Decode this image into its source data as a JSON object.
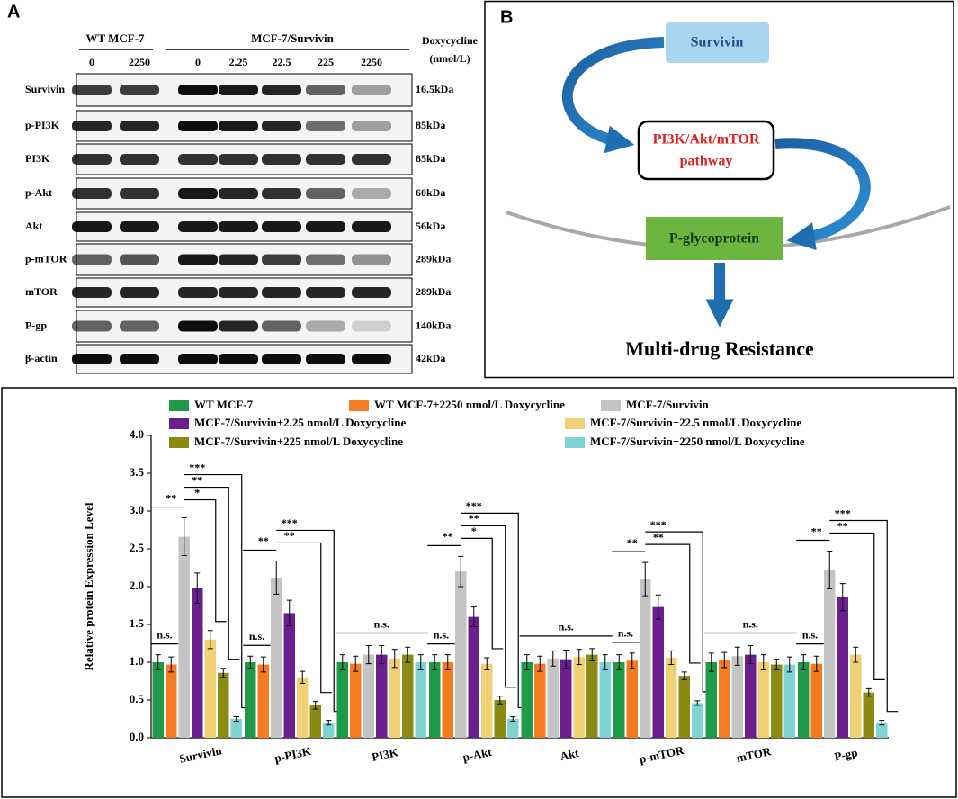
{
  "panel_a": {
    "label": "A",
    "groups": [
      "WT MCF-7",
      "MCF-7/Survivin"
    ],
    "lanes": [
      "0",
      "2250",
      "0",
      "2.25",
      "22.5",
      "225",
      "2250"
    ],
    "treatment": "Doxycycline",
    "unit": "(nmol/L)",
    "rows": [
      {
        "name": "Survivin",
        "size": "16.5kDa"
      },
      {
        "name": "p-PI3K",
        "size": "85kDa"
      },
      {
        "name": "PI3K",
        "size": "85kDa"
      },
      {
        "name": "p-Akt",
        "size": "60kDa"
      },
      {
        "name": "Akt",
        "size": "56kDa"
      },
      {
        "name": "p-mTOR",
        "size": "289kDa"
      },
      {
        "name": "mTOR",
        "size": "289kDa"
      },
      {
        "name": "P-gp",
        "size": "140kDa"
      },
      {
        "name": "β-actin",
        "size": "42kDa"
      }
    ]
  },
  "panel_b": {
    "label": "B",
    "survivin": "Survivin",
    "pathway": [
      "PI3K/Akt/mTOR",
      "pathway"
    ],
    "pgp": "P-glycoprotein",
    "outcome": "Multi-drug Resistance"
  },
  "chart_data": {
    "type": "bar",
    "y_label": "Relative protein Expression Level",
    "categories": [
      "Survivin",
      "p-PI3K",
      "PI3K",
      "p-Akt",
      "Akt",
      "p-mTOR",
      "mTOR",
      "P-gp"
    ],
    "ylim": [
      0,
      4
    ],
    "yticks": [
      {
        "value": 0,
        "label": "0.0"
      },
      0.5,
      {
        "value": 1,
        "label": "1.0"
      },
      1.5,
      {
        "value": 2,
        "label": "2.0"
      },
      2.5,
      {
        "value": 3,
        "label": "3.0"
      },
      3.5,
      {
        "value": 4,
        "label": "4.0"
      }
    ],
    "series": [
      {
        "name": "WT MCF-7",
        "color": "#1f9a48",
        "values": [
          1.0,
          1.0,
          1.0,
          1.0,
          1.0,
          1.0,
          1.0,
          1.0
        ],
        "errors": [
          0.1,
          0.08,
          0.1,
          0.1,
          0.1,
          0.1,
          0.12,
          0.1
        ]
      },
      {
        "name": "WT MCF-7+2250 nmol/L Doxycycline",
        "color": "#f47b20",
        "values": [
          0.97,
          0.97,
          0.98,
          1.0,
          0.98,
          1.02,
          1.03,
          0.98
        ],
        "errors": [
          0.1,
          0.1,
          0.1,
          0.1,
          0.1,
          0.1,
          0.1,
          0.1
        ]
      },
      {
        "name": "MCF-7/Survivin",
        "color": "#c4c4c4",
        "values": [
          2.66,
          2.12,
          1.1,
          2.2,
          1.05,
          2.1,
          1.08,
          2.22
        ],
        "errors": [
          0.25,
          0.22,
          0.12,
          0.2,
          0.1,
          0.22,
          0.12,
          0.25
        ]
      },
      {
        "name": "MCF-7/Survivin+2.25 nmol/L Doxycycline",
        "color": "#6b1f8f",
        "values": [
          1.98,
          1.65,
          1.1,
          1.6,
          1.04,
          1.73,
          1.1,
          1.86
        ],
        "errors": [
          0.2,
          0.17,
          0.12,
          0.13,
          0.12,
          0.16,
          0.12,
          0.18
        ]
      },
      {
        "name": "MCF-7/Survivin+22.5 nmol/L Doxycycline",
        "color": "#f0d074",
        "values": [
          1.3,
          0.8,
          1.05,
          0.98,
          1.07,
          1.06,
          1.0,
          1.1
        ],
        "errors": [
          0.12,
          0.08,
          0.12,
          0.08,
          0.1,
          0.09,
          0.1,
          0.1
        ]
      },
      {
        "name": "MCF-7/Survivin+225 nmol/L Doxycycline",
        "color": "#8b8b14",
        "values": [
          0.86,
          0.43,
          1.1,
          0.5,
          1.1,
          0.82,
          0.97,
          0.6
        ],
        "errors": [
          0.06,
          0.05,
          0.1,
          0.05,
          0.08,
          0.05,
          0.07,
          0.05
        ]
      },
      {
        "name": "MCF-7/Survivin+2250 nmol/L Doxycycline",
        "color": "#7fd3d2",
        "values": [
          0.25,
          0.2,
          1.0,
          0.25,
          1.0,
          0.46,
          0.97,
          0.2
        ],
        "errors": [
          0.03,
          0.03,
          0.1,
          0.03,
          0.1,
          0.03,
          0.1,
          0.03
        ]
      }
    ],
    "significance": [
      [
        "n.s.",
        "**",
        "***",
        "**",
        "*"
      ],
      [
        "n.s.",
        "**",
        "***",
        "**"
      ],
      [
        "n.s."
      ],
      [
        "n.s.",
        "**",
        "***",
        "**",
        "*"
      ],
      [
        "n.s."
      ],
      [
        "n.s.",
        "**",
        "***",
        "**"
      ],
      [
        "n.s."
      ],
      [
        "n.s.",
        "**",
        "***",
        "**"
      ]
    ]
  }
}
